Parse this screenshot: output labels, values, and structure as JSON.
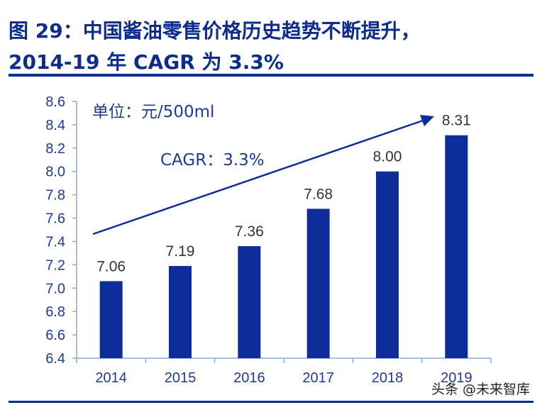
{
  "title_line1": "图 29：中国酱油零售价格历史趋势不断提升，",
  "title_line2": "2014-19 年 CAGR 为 3.3%",
  "watermark": "头条 @未来智库",
  "chart_data": {
    "type": "bar",
    "categories": [
      "2014",
      "2015",
      "2016",
      "2017",
      "2018",
      "2019"
    ],
    "values": [
      7.06,
      7.19,
      7.36,
      7.68,
      8.0,
      8.31
    ],
    "data_labels": [
      "7.06",
      "7.19",
      "7.36",
      "7.68",
      "8.00",
      "8.31"
    ],
    "unit_label": "单位：元/500ml",
    "annotation": "CAGR：3.3%",
    "ylim": [
      6.4,
      8.6
    ],
    "yticks": [
      "6.4",
      "6.6",
      "6.8",
      "7.0",
      "7.2",
      "7.4",
      "7.6",
      "7.8",
      "8.0",
      "8.2",
      "8.4",
      "8.6"
    ],
    "grid": false,
    "bar_color": "#0d2d9a",
    "text_color": "#1f3a93"
  }
}
